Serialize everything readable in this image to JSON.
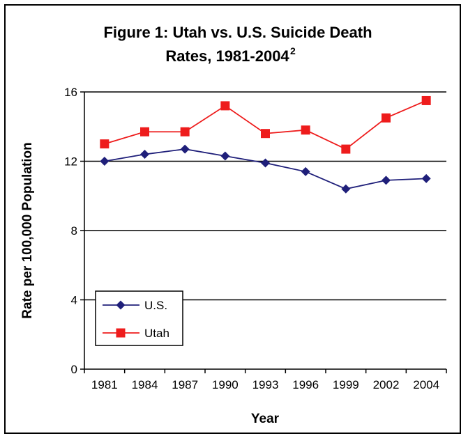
{
  "chart_data": {
    "type": "line",
    "title_line1": "Figure 1: Utah vs. U.S. Suicide Death",
    "title_line2": "Rates, 1981-2004",
    "title_superscript": "2",
    "xlabel": "Year",
    "ylabel": "Rate per 100,000 Population",
    "categories": [
      "1981",
      "1984",
      "1987",
      "1990",
      "1993",
      "1996",
      "1999",
      "2002",
      "2004"
    ],
    "yticks": [
      "0",
      "4",
      "8",
      "12",
      "16"
    ],
    "ylim": [
      0,
      16
    ],
    "grid": "horizontal",
    "legend_position": "bottom-left",
    "series": [
      {
        "name": "U.S.",
        "color": "#1f1f7a",
        "marker": "diamond",
        "values": [
          12.0,
          12.4,
          12.7,
          12.3,
          11.9,
          11.4,
          10.4,
          10.9,
          11.0
        ]
      },
      {
        "name": "Utah",
        "color": "#ee1c1c",
        "marker": "square",
        "values": [
          13.0,
          13.7,
          13.7,
          15.2,
          13.6,
          13.8,
          12.7,
          14.5,
          15.5
        ]
      }
    ]
  }
}
